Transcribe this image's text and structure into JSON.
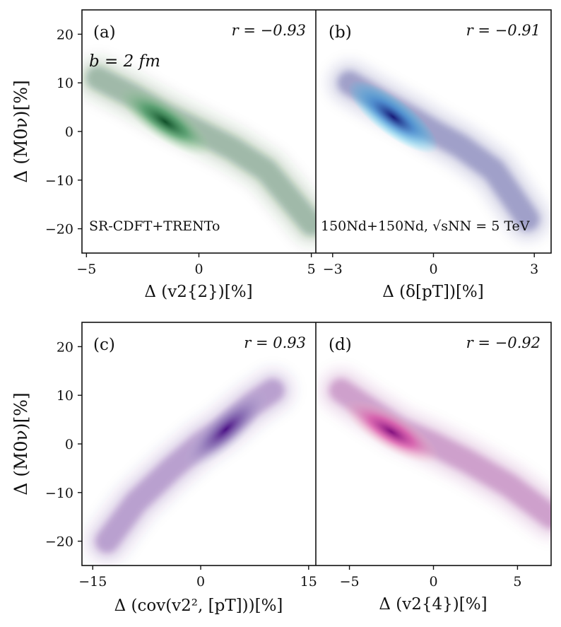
{
  "chart_data": [
    {
      "type": "density",
      "panel_label": "(a)",
      "r_text": "r = −0.93",
      "annotations": [
        "b = 2 fm",
        "SR-CDFT+TRENTo"
      ],
      "xlabel": "Δ (v2{2})[%]",
      "ylabel": "Δ (M0ν)[%]",
      "xlim": [
        -5.2,
        5.2
      ],
      "ylim": [
        -25,
        25
      ],
      "xticks": [
        -5,
        0,
        5
      ],
      "xtick_labels": [
        "−5",
        "0",
        "5"
      ],
      "yticks": [
        20,
        10,
        0,
        -10,
        -20
      ],
      "ytick_labels": [
        "20",
        "10",
        "0",
        "−10",
        "−20"
      ],
      "colormap": "Greens",
      "color": "#00441b",
      "trend": [
        [
          -4.5,
          11
        ],
        [
          -3,
          7.5
        ],
        [
          -1.5,
          3.5
        ],
        [
          0,
          0
        ],
        [
          1.5,
          -3.5
        ],
        [
          3,
          -8
        ],
        [
          5,
          -19
        ]
      ],
      "peak": [
        -1.5,
        2
      ]
    },
    {
      "type": "density",
      "panel_label": "(b)",
      "r_text": "r = −0.91",
      "annotations": [
        "150Nd+150Nd, √sNN = 5 TeV"
      ],
      "xlabel": "Δ (δ[pT])[%]",
      "xlim": [
        -3.5,
        3.5
      ],
      "ylim": [
        -25,
        25
      ],
      "xticks": [
        -3,
        0,
        3
      ],
      "xtick_labels": [
        "−3",
        "0",
        "3"
      ],
      "colormap": "cyan-navy",
      "color": "#080a6e",
      "trend": [
        [
          -2.5,
          10
        ],
        [
          -1.5,
          6
        ],
        [
          -0.6,
          2.5
        ],
        [
          0,
          0
        ],
        [
          0.8,
          -3
        ],
        [
          1.8,
          -8
        ],
        [
          2.8,
          -18
        ]
      ],
      "peak": [
        -1.2,
        3
      ]
    },
    {
      "type": "density",
      "panel_label": "(c)",
      "r_text": "r = 0.93",
      "xlabel": "Δ (cov(v2², [pT]))[%]",
      "ylabel": "Δ (M0ν)[%]",
      "xlim": [
        -16.5,
        16
      ],
      "ylim": [
        -25,
        25
      ],
      "xticks": [
        -15,
        0,
        15
      ],
      "xtick_labels": [
        "−15",
        "0",
        "15"
      ],
      "yticks": [
        20,
        10,
        0,
        -10,
        -20
      ],
      "ytick_labels": [
        "20",
        "10",
        "0",
        "−10",
        "−20"
      ],
      "colormap": "Purples",
      "color": "#3f007d",
      "trend": [
        [
          -13,
          -20
        ],
        [
          -9,
          -12
        ],
        [
          -4,
          -5
        ],
        [
          0,
          0
        ],
        [
          3,
          3
        ],
        [
          7,
          8
        ],
        [
          10,
          11
        ]
      ],
      "peak": [
        3.5,
        3
      ]
    },
    {
      "type": "density",
      "panel_label": "(d)",
      "r_text": "r = −0.92",
      "xlabel": "Δ (v2{4})[%]",
      "xlim": [
        -7,
        7
      ],
      "ylim": [
        -25,
        25
      ],
      "xticks": [
        -5,
        0,
        5
      ],
      "xtick_labels": [
        "−5",
        "0",
        "5"
      ],
      "colormap": "RdPu",
      "color": "#7a0177",
      "trend": [
        [
          -5.5,
          11
        ],
        [
          -4,
          7.5
        ],
        [
          -2,
          3
        ],
        [
          0,
          0
        ],
        [
          2,
          -3.5
        ],
        [
          4.5,
          -8.5
        ],
        [
          7,
          -15
        ]
      ],
      "peak": [
        -2.5,
        2.5
      ]
    }
  ]
}
